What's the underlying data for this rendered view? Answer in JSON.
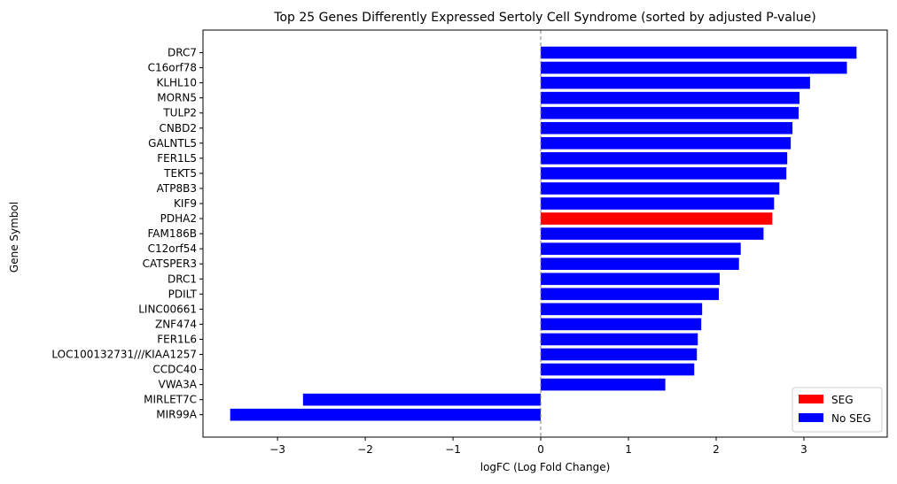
{
  "chart_data": {
    "type": "bar",
    "orientation": "horizontal",
    "title": "Top 25 Genes Differently Expressed Sertoly Cell Syndrome (sorted by adjusted P-value)",
    "xlabel": "logFC (Log Fold Change)",
    "ylabel": "Gene Symbol",
    "xlim": [
      -3.85,
      3.95
    ],
    "xticks": [
      -3,
      -2,
      -1,
      0,
      1,
      2,
      3
    ],
    "xtick_labels": [
      "−3",
      "−2",
      "−1",
      "0",
      "1",
      "2",
      "3"
    ],
    "reference_line": {
      "x": 0,
      "style": "dashed",
      "color": "#808080"
    },
    "categories": [
      "DRC7",
      "C16orf78",
      "KLHL10",
      "MORN5",
      "TULP2",
      "CNBD2",
      "GALNTL5",
      "FER1L5",
      "TEKT5",
      "ATP8B3",
      "KIF9",
      "PDHA2",
      "FAM186B",
      "C12orf54",
      "CATSPER3",
      "DRC1",
      "PDILT",
      "LINC00661",
      "ZNF474",
      "FER1L6",
      "LOC100132731///KIAA1257",
      "CCDC40",
      "VWA3A",
      "MIRLET7C",
      "MIR99A"
    ],
    "values": [
      3.6,
      3.49,
      3.07,
      2.95,
      2.94,
      2.87,
      2.85,
      2.81,
      2.8,
      2.72,
      2.66,
      2.64,
      2.54,
      2.28,
      2.26,
      2.04,
      2.03,
      1.84,
      1.83,
      1.79,
      1.78,
      1.75,
      1.42,
      -2.71,
      -3.54
    ],
    "groups": [
      "No SEG",
      "No SEG",
      "No SEG",
      "No SEG",
      "No SEG",
      "No SEG",
      "No SEG",
      "No SEG",
      "No SEG",
      "No SEG",
      "No SEG",
      "SEG",
      "No SEG",
      "No SEG",
      "No SEG",
      "No SEG",
      "No SEG",
      "No SEG",
      "No SEG",
      "No SEG",
      "No SEG",
      "No SEG",
      "No SEG",
      "No SEG",
      "No SEG"
    ],
    "legend": {
      "placement": "lower-right",
      "entries": [
        {
          "label": "SEG",
          "color": "#ff0000"
        },
        {
          "label": "No SEG",
          "color": "#0000ff"
        }
      ]
    },
    "colors": {
      "SEG": "#ff0000",
      "No SEG": "#0000ff"
    }
  }
}
